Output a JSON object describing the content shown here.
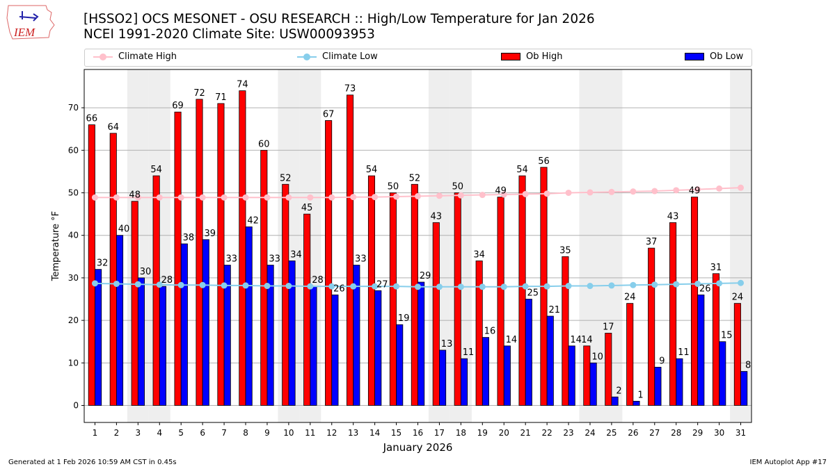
{
  "title_line1": "[HSSO2] OCS MESONET - OSU RESEARCH :: High/Low Temperature for Jan 2026",
  "title_line2": "NCEI 1991-2020 Climate Site: USW00093953",
  "logo_text": "IEM",
  "footer_left": "Generated at 1 Feb 2026 10:59 AM CST in 0.45s",
  "footer_right": "IEM Autoplot App #17",
  "chart_data": {
    "type": "bar",
    "title": "[HSSO2] OCS MESONET - OSU RESEARCH :: High/Low Temperature for Jan 2026",
    "xlabel": "January 2026",
    "ylabel": "Temperature °F",
    "ylim": [
      -4,
      79
    ],
    "yticks": [
      0,
      10,
      20,
      30,
      40,
      50,
      60,
      70
    ],
    "grid": true,
    "legend_position": "top",
    "categories": [
      1,
      2,
      3,
      4,
      5,
      6,
      7,
      8,
      9,
      10,
      11,
      12,
      13,
      14,
      15,
      16,
      17,
      18,
      19,
      20,
      21,
      22,
      23,
      24,
      25,
      26,
      27,
      28,
      29,
      30,
      31
    ],
    "weekend_shaded_days": [
      3,
      4,
      10,
      11,
      17,
      18,
      24,
      25,
      31
    ],
    "colors": {
      "ob_high": "#ff0000",
      "ob_low": "#0000ff",
      "climate_high": "#ffc0cb",
      "climate_low": "#87ceeb",
      "shade": "#eeeeee"
    },
    "series": [
      {
        "name": "Climate High",
        "kind": "line",
        "values": [
          48.9,
          48.9,
          48.9,
          48.9,
          48.9,
          48.9,
          48.9,
          48.9,
          48.9,
          48.9,
          48.9,
          48.9,
          49.0,
          49.0,
          49.1,
          49.2,
          49.3,
          49.4,
          49.5,
          49.6,
          49.7,
          49.8,
          50.0,
          50.1,
          50.2,
          50.3,
          50.4,
          50.6,
          50.8,
          51.0,
          51.2
        ]
      },
      {
        "name": "Climate Low",
        "kind": "line",
        "values": [
          28.7,
          28.6,
          28.5,
          28.4,
          28.3,
          28.3,
          28.2,
          28.2,
          28.1,
          28.1,
          28.0,
          28.0,
          28.0,
          28.0,
          28.0,
          27.9,
          27.9,
          27.9,
          27.9,
          27.9,
          28.0,
          28.0,
          28.1,
          28.1,
          28.2,
          28.3,
          28.4,
          28.5,
          28.6,
          28.7,
          28.8
        ]
      },
      {
        "name": "Ob High",
        "kind": "bar",
        "values": [
          66,
          64,
          48,
          54,
          69,
          72,
          71,
          74,
          60,
          52,
          45,
          67,
          73,
          54,
          50,
          52,
          43,
          50,
          34,
          49,
          54,
          56,
          35,
          14,
          17,
          24,
          37,
          43,
          49,
          31,
          24
        ]
      },
      {
        "name": "Ob Low",
        "kind": "bar",
        "values": [
          32,
          40,
          30,
          28,
          38,
          39,
          33,
          42,
          33,
          34,
          28,
          26,
          33,
          27,
          19,
          29,
          13,
          11,
          16,
          14,
          25,
          21,
          14,
          10,
          2,
          1,
          9,
          11,
          26,
          15,
          8
        ]
      }
    ]
  }
}
